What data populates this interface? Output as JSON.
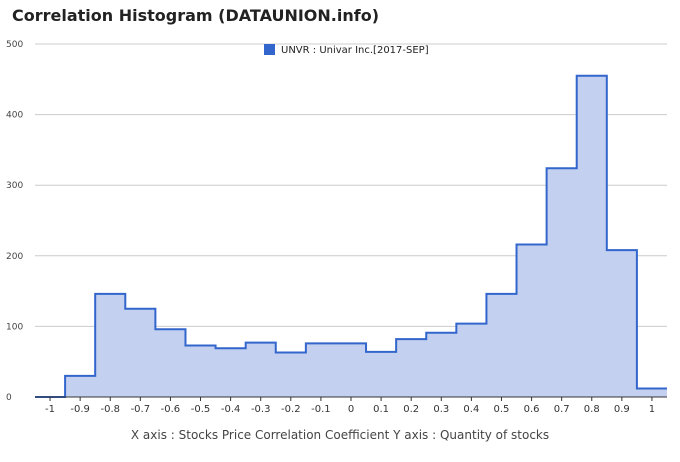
{
  "title": "Correlation Histogram (DATAUNION.info)",
  "caption": "X axis : Stocks Price Correlation Coefficient  Y axis : Quantity of stocks",
  "colors": {
    "line": "#3366cc",
    "fill": "#c3d0f0",
    "grid": "#cccccc",
    "legend_swatch": "#3366cc"
  },
  "chart_data": {
    "type": "area",
    "step": true,
    "grid": true,
    "legend_position": "top-center",
    "xlim": [
      -1.05,
      1.05
    ],
    "ylim": [
      0,
      500
    ],
    "x_ticks": [
      -1,
      -0.9,
      -0.8,
      -0.7,
      -0.6,
      -0.5,
      -0.4,
      -0.3,
      -0.2,
      -0.1,
      0,
      0.1,
      0.2,
      0.3,
      0.4,
      0.5,
      0.6,
      0.7,
      0.8,
      0.9,
      1
    ],
    "x_tick_labels": [
      "-1",
      "-0.9",
      "-0.8",
      "-0.7",
      "-0.6",
      "-0.5",
      "-0.4",
      "-0.3",
      "-0.2",
      "-0.1",
      "0",
      "0.1",
      "0.2",
      "0.3",
      "0.4",
      "0.5",
      "0.6",
      "0.7",
      "0.8",
      "0.9",
      "1"
    ],
    "y_ticks": [
      0,
      100,
      200,
      300,
      400,
      500
    ],
    "y_tick_labels": [
      "0",
      "100",
      "200",
      "300",
      "400",
      "500"
    ],
    "series": [
      {
        "name": "UNVR : Univar Inc.[2017-SEP]",
        "x": [
          -1,
          -0.9,
          -0.8,
          -0.7,
          -0.6,
          -0.5,
          -0.4,
          -0.3,
          -0.2,
          -0.1,
          0,
          0.1,
          0.2,
          0.3,
          0.4,
          0.5,
          0.6,
          0.7,
          0.8,
          0.9,
          1
        ],
        "values": [
          0,
          30,
          146,
          125,
          96,
          73,
          69,
          77,
          63,
          76,
          76,
          64,
          82,
          91,
          104,
          146,
          216,
          324,
          455,
          208,
          12
        ]
      }
    ]
  }
}
